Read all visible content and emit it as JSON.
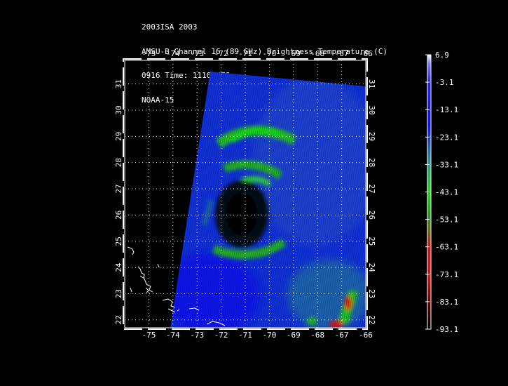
{
  "header": {
    "line1": "2003ISA 2003",
    "line2": "AMSU-B Channel 16 (89 GHz) Brightness Temperature (C)",
    "line3": "0916 Time: 1110 UTC",
    "line4": "NOAA-15"
  },
  "map": {
    "lon_range": [
      -76,
      -66
    ],
    "lat_range": [
      21.7,
      31.9
    ],
    "lon_ticks": [
      "-75",
      "-74",
      "-73",
      "-72",
      "-71",
      "-70",
      "-69",
      "-68",
      "-67",
      "-66"
    ],
    "lat_ticks": [
      "22",
      "23",
      "24",
      "25",
      "26",
      "27",
      "28",
      "29",
      "30",
      "31"
    ],
    "grid": "dotted"
  },
  "colorbar": {
    "labels": [
      "6.9",
      "-3.1",
      "-13.1",
      "-23.1",
      "-33.1",
      "-43.1",
      "-53.1",
      "-63.1",
      "-73.1",
      "-83.1",
      "-93.1"
    ],
    "colors": [
      "#ffffff",
      "#2b2bff",
      "#0a14ff",
      "#1a3ad8",
      "#1f8fa0",
      "#10e010",
      "#20a020",
      "#a01010",
      "#e01010",
      "#800000",
      "#000000"
    ]
  },
  "colors": {
    "background": "#000000",
    "frame": "#ffffff",
    "eye": "#000000"
  }
}
